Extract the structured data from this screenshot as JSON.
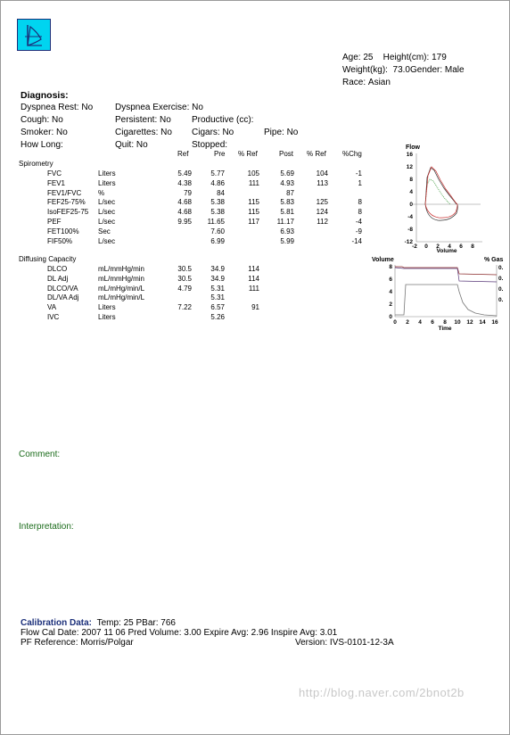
{
  "patient": {
    "age_label": "Age:",
    "age": "25",
    "height_label": "Height(cm):",
    "height": "179",
    "weight_label": "Weight(kg):",
    "weight": "73.0",
    "gender_label": "Gender:",
    "gender": "Male",
    "race_label": "Race:",
    "race": "Asian"
  },
  "diagnosis": {
    "heading": "Diagnosis:",
    "rows": [
      [
        "Dyspnea Rest: No",
        "Dyspnea Exercise: No",
        "",
        ""
      ],
      [
        "Cough: No",
        "Persistent: No",
        "Productive (cc):",
        ""
      ],
      [
        "Smoker: No",
        "Cigarettes: No",
        "Cigars: No",
        "Pipe: No"
      ],
      [
        "How Long:",
        "Quit: No",
        "Stopped:",
        ""
      ]
    ]
  },
  "columns": {
    "ref": "Ref",
    "pre": "Pre",
    "pref": "% Ref",
    "post": "Post",
    "postref": "% Ref",
    "chg": "%Chg"
  },
  "spirometry": {
    "title": "Spirometry",
    "rows": [
      {
        "name": "FVC",
        "unit": "Liters",
        "ref": "5.49",
        "pre": "5.77",
        "pref": "105",
        "post": "5.69",
        "postref": "104",
        "chg": "-1"
      },
      {
        "name": "FEV1",
        "unit": "Liters",
        "ref": "4.38",
        "pre": "4.86",
        "pref": "111",
        "post": "4.93",
        "postref": "113",
        "chg": "1"
      },
      {
        "name": "FEV1/FVC",
        "unit": "%",
        "ref": "79",
        "pre": "84",
        "pref": "",
        "post": "87",
        "postref": "",
        "chg": ""
      },
      {
        "name": "FEF25-75%",
        "unit": "L/sec",
        "ref": "4.68",
        "pre": "5.38",
        "pref": "115",
        "post": "5.83",
        "postref": "125",
        "chg": "8"
      },
      {
        "name": "IsoFEF25-75",
        "unit": "L/sec",
        "ref": "4.68",
        "pre": "5.38",
        "pref": "115",
        "post": "5.81",
        "postref": "124",
        "chg": "8"
      },
      {
        "name": "PEF",
        "unit": "L/sec",
        "ref": "9.95",
        "pre": "11.65",
        "pref": "117",
        "post": "11.17",
        "postref": "112",
        "chg": "-4"
      },
      {
        "name": "FET100%",
        "unit": "Sec",
        "ref": "",
        "pre": "7.60",
        "pref": "",
        "post": "6.93",
        "postref": "",
        "chg": "-9"
      },
      {
        "name": "FIF50%",
        "unit": "L/sec",
        "ref": "",
        "pre": "6.99",
        "pref": "",
        "post": "5.99",
        "postref": "",
        "chg": "-14"
      }
    ]
  },
  "diffusing": {
    "title": "Diffusing Capacity",
    "rows": [
      {
        "name": "DLCO",
        "unit": "mL/mmHg/min",
        "ref": "30.5",
        "pre": "34.9",
        "pref": "114"
      },
      {
        "name": "DL Adj",
        "unit": "mL/mmHg/min",
        "ref": "30.5",
        "pre": "34.9",
        "pref": "114"
      },
      {
        "name": "DLCO/VA",
        "unit": "mL/mHg/min/L",
        "ref": "4.79",
        "pre": "5.31",
        "pref": "111"
      },
      {
        "name": "DL/VA Adj",
        "unit": "mL/mHg/min/L",
        "ref": "",
        "pre": "5.31",
        "pref": ""
      },
      {
        "name": "VA",
        "unit": "Liters",
        "ref": "7.22",
        "pre": "6.57",
        "pref": "91"
      },
      {
        "name": "IVC",
        "unit": "Liters",
        "ref": "",
        "pre": "5.26",
        "pref": ""
      }
    ]
  },
  "flow_chart": {
    "ylabel": "Flow",
    "xlabel": "Volume",
    "yticks": [
      "16",
      "12",
      "8",
      "4",
      "0",
      "-4",
      "-8",
      "-12"
    ],
    "xticks": [
      "-2",
      "0",
      "2",
      "4",
      "6",
      "8"
    ]
  },
  "volume_chart": {
    "ylabel": "Volume",
    "xlabel": "Time",
    "right_label": "% Gas",
    "yticks": [
      "8",
      "6",
      "4",
      "2",
      "0"
    ],
    "xticks": [
      "0",
      "2",
      "4",
      "6",
      "8",
      "10",
      "12",
      "14",
      "16"
    ],
    "right_ticks": [
      "0.",
      "0.",
      "0.",
      "0."
    ]
  },
  "comment": {
    "label": "Comment:"
  },
  "interpretation": {
    "label": "Interpretation:"
  },
  "calibration": {
    "heading": "Calibration Data:",
    "temp": "Temp:  25 PBar: 766",
    "line2": "Flow Cal Date: 2007 11 06   Pred Volume:  3.00   Expire Avg:  2.96   Inspire Avg:  3.01",
    "reference": "PF Reference: Morris/Polgar",
    "version": "Version: IVS-0101-12-3A"
  },
  "watermark": "http://blog.naver.com/2bnot2b",
  "colors": {
    "logo_bg": "#00d4f0",
    "green_label": "#1a6b1a",
    "navy_label": "#1b2f7a"
  }
}
